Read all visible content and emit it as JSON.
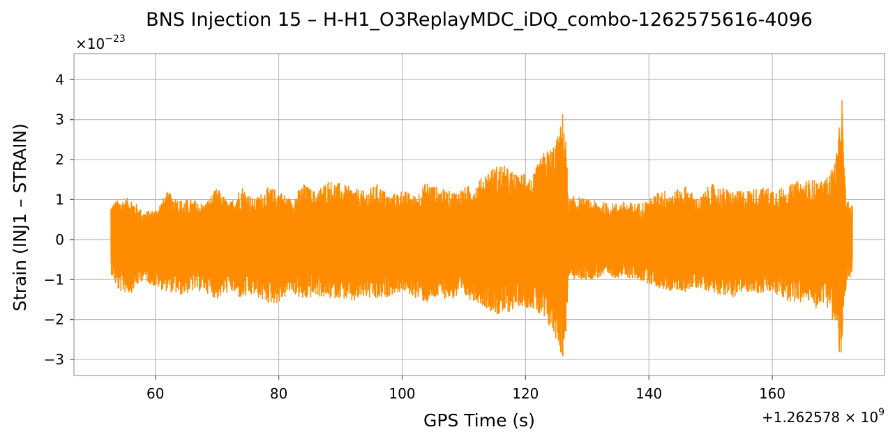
{
  "chart_data": {
    "type": "line",
    "title": "BNS Injection 15 – H-H1_O3ReplayMDC_iDQ_combo-1262575616-4096",
    "xlabel": "GPS Time (s)",
    "ylabel": "Strain (INJ1 – STRAIN)",
    "x_offset_label": "+1.262578 × 10",
    "x_offset_exponent": "9",
    "y_scale_label": "×10",
    "y_scale_exponent": "−23",
    "xlim": [
      46.8,
      178.2
    ],
    "ylim": [
      -3.4,
      4.65
    ],
    "x_ticks": [
      60,
      80,
      100,
      120,
      140,
      160
    ],
    "x_tick_labels": [
      "60",
      "80",
      "100",
      "120",
      "140",
      "160"
    ],
    "y_ticks": [
      -3,
      -2,
      -1,
      0,
      1,
      2,
      3,
      4
    ],
    "y_tick_labels": [
      "−3",
      "−2",
      "−1",
      "0",
      "1",
      "2",
      "3",
      "4"
    ],
    "grid": true,
    "series": [
      {
        "color": "#ff8c00",
        "x_range": [
          52.8,
          173.0
        ],
        "envelope_x": [
          52.8,
          54,
          56,
          58,
          60,
          62,
          64,
          66,
          68,
          70,
          72,
          74,
          76,
          78,
          80,
          82,
          84,
          86,
          88,
          90,
          92,
          94,
          96,
          98,
          100,
          102,
          104,
          106,
          108,
          110,
          112,
          114,
          116,
          118,
          119,
          120,
          121,
          122,
          123,
          124,
          125,
          125.5,
          126,
          126.4,
          127,
          128,
          130,
          132,
          134,
          136,
          138,
          140,
          142,
          144,
          146,
          148,
          150,
          152,
          154,
          156,
          158,
          160,
          162,
          164,
          166,
          167,
          168,
          169,
          170,
          170.5,
          171,
          171.2,
          171.6,
          172,
          173
        ],
        "envelope_upper": [
          0.9,
          1.0,
          1.05,
          0.7,
          0.75,
          1.2,
          1.0,
          1.0,
          0.9,
          1.3,
          0.9,
          1.35,
          1.0,
          1.3,
          1.25,
          1.0,
          1.4,
          1.2,
          1.5,
          1.4,
          1.3,
          1.2,
          1.4,
          1.1,
          1.25,
          1.1,
          1.45,
          1.3,
          1.2,
          1.3,
          1.4,
          1.75,
          1.9,
          1.7,
          1.55,
          1.85,
          1.5,
          1.9,
          2.2,
          2.3,
          2.5,
          2.7,
          3.2,
          3.0,
          1.0,
          1.1,
          1.0,
          0.95,
          0.9,
          0.95,
          0.9,
          1.0,
          1.25,
          1.2,
          1.35,
          1.0,
          1.4,
          1.3,
          1.2,
          1.25,
          1.3,
          1.3,
          1.3,
          1.45,
          1.5,
          1.5,
          1.45,
          1.6,
          1.9,
          2.3,
          3.0,
          4.25,
          2.0,
          1.0,
          0.85
        ],
        "envelope_lower": [
          -0.85,
          -1.3,
          -1.35,
          -1.0,
          -1.2,
          -1.3,
          -1.4,
          -1.3,
          -1.3,
          -1.5,
          -1.3,
          -1.5,
          -1.4,
          -1.6,
          -1.6,
          -1.3,
          -1.55,
          -1.4,
          -1.5,
          -1.45,
          -1.6,
          -1.45,
          -1.55,
          -1.4,
          -1.3,
          -1.45,
          -1.6,
          -1.45,
          -1.5,
          -1.45,
          -1.55,
          -1.75,
          -1.95,
          -1.75,
          -1.65,
          -1.7,
          -1.7,
          -1.9,
          -2.1,
          -2.25,
          -2.5,
          -2.7,
          -3.05,
          -2.8,
          -0.95,
          -1.0,
          -1.0,
          -0.95,
          -0.95,
          -0.95,
          -1.0,
          -1.1,
          -1.25,
          -1.3,
          -1.3,
          -1.2,
          -1.3,
          -1.4,
          -1.45,
          -1.3,
          -1.35,
          -1.35,
          -1.5,
          -1.6,
          -1.55,
          -1.75,
          -1.55,
          -1.7,
          -2.1,
          -2.5,
          -3.0,
          -2.95,
          -1.9,
          -1.3,
          -0.75
        ]
      }
    ]
  }
}
